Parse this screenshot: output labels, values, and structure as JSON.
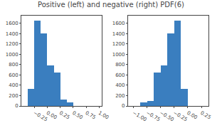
{
  "title": "Positive (left) and negative (right) PDF(6)",
  "chart_data": [
    {
      "type": "histogram",
      "bins": [
        -0.375,
        -0.25,
        -0.125,
        0.0,
        0.125,
        0.25,
        0.375,
        0.5,
        0.625,
        0.75,
        0.875
      ],
      "values": [
        330,
        1650,
        1400,
        790,
        650,
        130,
        65,
        0,
        0,
        0
      ],
      "color": "#3a7ebf",
      "xlim": [
        -0.5,
        1.05
      ],
      "xticks": [
        {
          "value": -0.25,
          "label": "−0.25"
        },
        {
          "value": 0.0,
          "label": "0.00"
        },
        0.25,
        {
          "value": 0.5,
          "label": "0.50"
        },
        0.75,
        {
          "value": 1.0,
          "label": "1.00"
        }
      ],
      "ylim": [
        0,
        1750
      ],
      "yticks": [
        0,
        200,
        400,
        600,
        800,
        1000,
        1200,
        1400,
        1600
      ],
      "grid": false
    },
    {
      "type": "histogram",
      "bins": [
        -1.0,
        -0.875,
        -0.75,
        -0.625,
        -0.5,
        -0.375,
        -0.25,
        -0.125,
        0.0,
        0.125,
        0.25,
        0.375
      ],
      "values": [
        0,
        70,
        100,
        650,
        790,
        1400,
        1650,
        330,
        0,
        0,
        0
      ],
      "color": "#3a7ebf",
      "xlim": [
        -1.1,
        0.38
      ],
      "xticks": [
        {
          "value": -1.0,
          "label": "−1.00"
        },
        {
          "value": -0.75,
          "label": "−0.75"
        },
        {
          "value": -0.5,
          "label": "−0.50"
        },
        {
          "value": -0.25,
          "label": "−0.25"
        },
        {
          "value": 0.0,
          "label": "0.00"
        },
        0.25
      ],
      "ylim": [
        0,
        1750
      ],
      "yticks": [
        0,
        200,
        400,
        600,
        800,
        1000,
        1200,
        1400,
        1600
      ],
      "grid": false
    }
  ]
}
